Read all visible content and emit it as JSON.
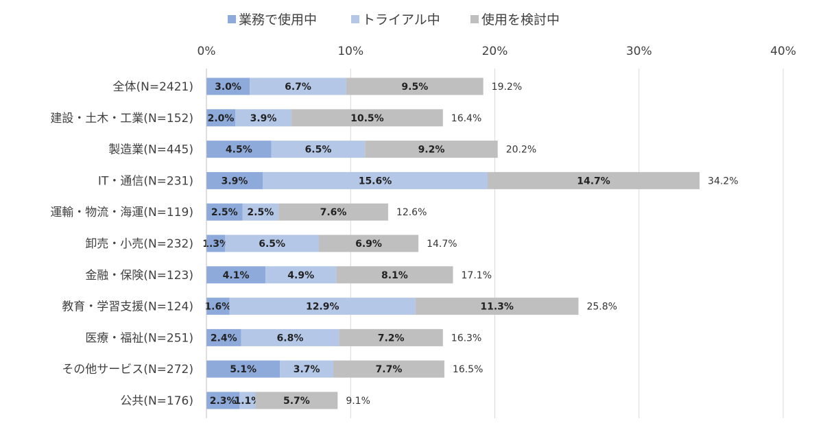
{
  "chart_data": {
    "type": "bar",
    "orientation": "horizontal",
    "stacked": true,
    "title": "",
    "xlabel": "",
    "ylabel": "",
    "xlim": [
      0,
      40
    ],
    "ticks": [
      0,
      10,
      20,
      30,
      40
    ],
    "tick_labels": [
      "0%",
      "10%",
      "20%",
      "30%",
      "40%"
    ],
    "grid": true,
    "legend_position": "top",
    "categories": [
      "全体(N=2421)",
      "建設・土木・工業(N=152)",
      "製造業(N=445)",
      "IT・通信(N=231)",
      "運輸・物流・海運(N=119)",
      "卸売・小売(N=232)",
      "金融・保険(N=123)",
      "教育・学習支援(N=124)",
      "医療・福祉(N=251)",
      "その他サービス(N=272)",
      "公共(N=176)"
    ],
    "series": [
      {
        "name": "業務で使用中",
        "color": "#8eaadb",
        "values": [
          3.0,
          2.0,
          4.5,
          3.9,
          2.5,
          1.3,
          4.1,
          1.6,
          2.4,
          5.1,
          2.3
        ],
        "labels": [
          "3.0%",
          "2.0%",
          "4.5%",
          "3.9%",
          "2.5%",
          "1.3%",
          "4.1%",
          "1.6%",
          "2.4%",
          "5.1%",
          "2.3%"
        ]
      },
      {
        "name": "トライアル中",
        "color": "#b4c7e7",
        "values": [
          6.7,
          3.9,
          6.5,
          15.6,
          2.5,
          6.5,
          4.9,
          12.9,
          6.8,
          3.7,
          1.1
        ],
        "labels": [
          "6.7%",
          "3.9%",
          "6.5%",
          "15.6%",
          "2.5%",
          "6.5%",
          "4.9%",
          "12.9%",
          "6.8%",
          "3.7%",
          "1.1%"
        ]
      },
      {
        "name": "使用を検討中",
        "color": "#bfbfbf",
        "values": [
          9.5,
          10.5,
          9.2,
          14.7,
          7.6,
          6.9,
          8.1,
          11.3,
          7.2,
          7.7,
          5.7
        ],
        "labels": [
          "9.5%",
          "10.5%",
          "9.2%",
          "14.7%",
          "7.6%",
          "6.9%",
          "8.1%",
          "11.3%",
          "7.2%",
          "7.7%",
          "5.7%"
        ]
      }
    ],
    "totals": [
      19.2,
      16.4,
      20.2,
      34.2,
      12.6,
      14.7,
      17.1,
      25.8,
      16.3,
      16.5,
      9.1
    ],
    "total_labels": [
      "19.2%",
      "16.4%",
      "20.2%",
      "34.2%",
      "12.6%",
      "14.7%",
      "17.1%",
      "25.8%",
      "16.3%",
      "16.5%",
      "9.1%"
    ]
  }
}
